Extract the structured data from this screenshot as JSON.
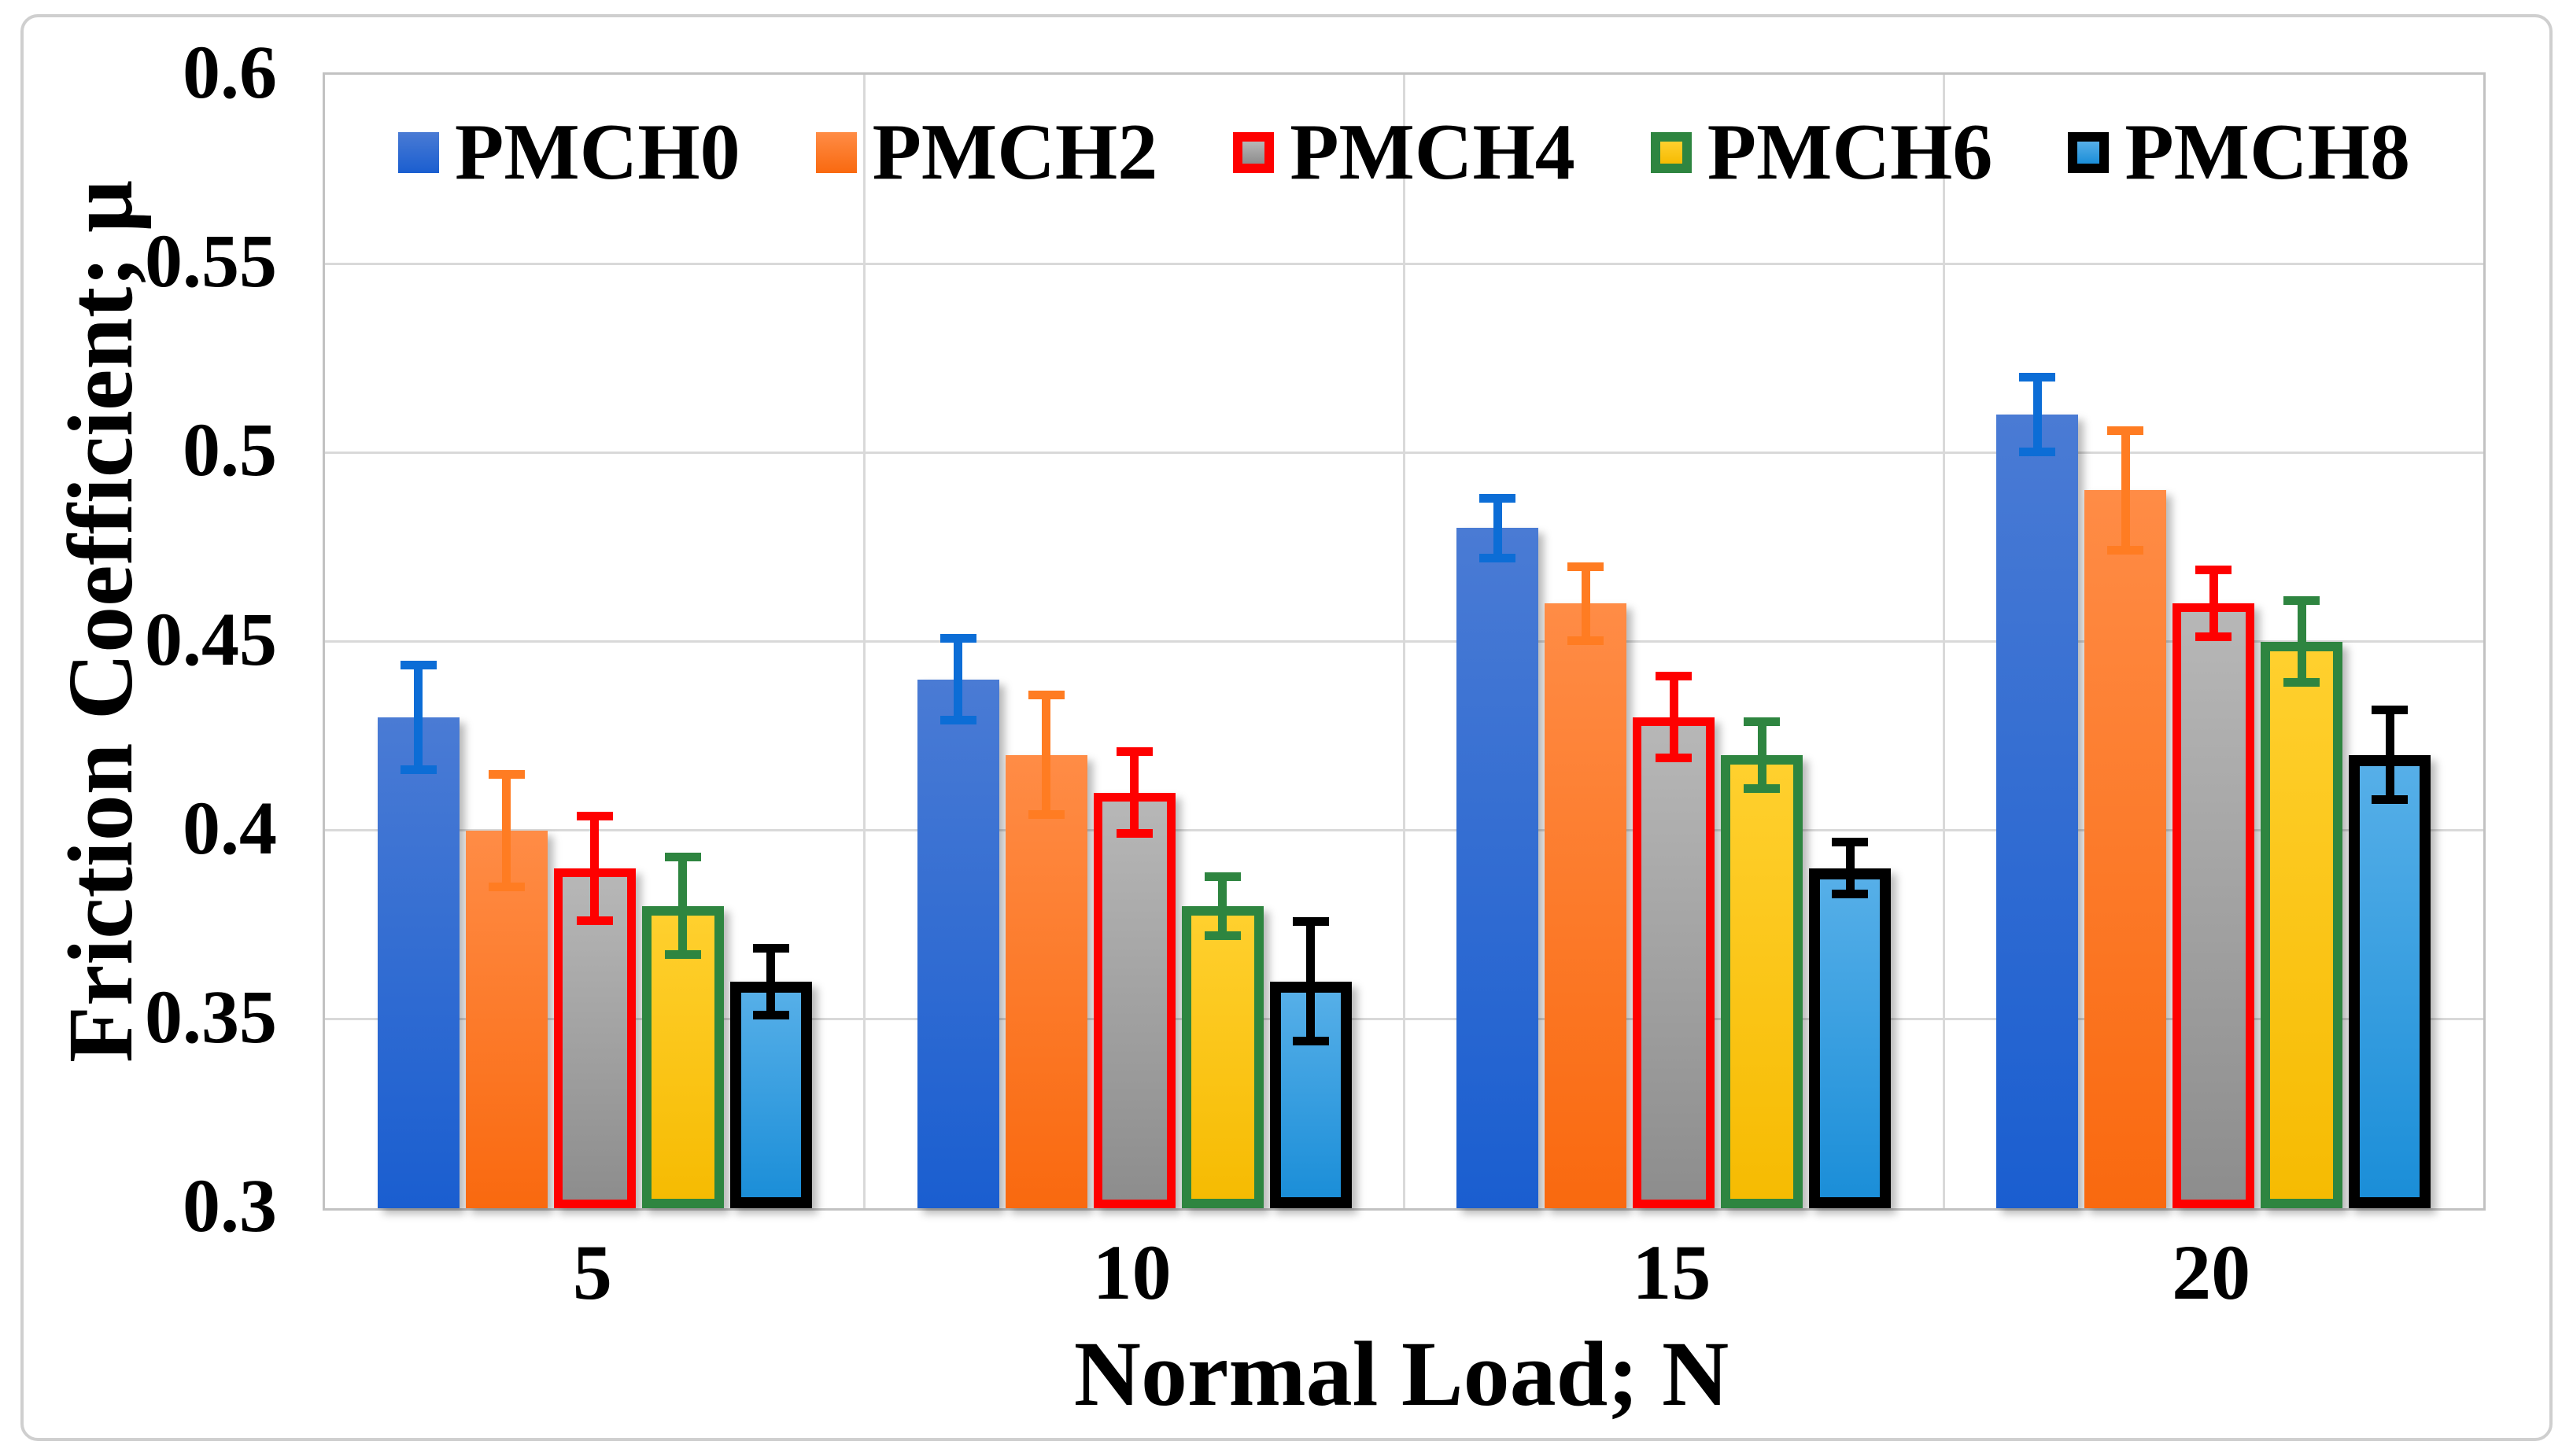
{
  "figure": {
    "background": "#ffffff",
    "frame_color": "#cfcfcf",
    "gridline_color": "#d9d9d9",
    "plot_border_color": "#c2c2c2"
  },
  "chart_data": {
    "type": "bar",
    "title": "",
    "xlabel": "Normal Load; N",
    "ylabel": "Friction Coefficient; μ",
    "categories": [
      "5",
      "10",
      "15",
      "20"
    ],
    "ylim": [
      0.3,
      0.6
    ],
    "y_ticks": [
      0.3,
      0.35,
      0.4,
      0.45,
      0.5,
      0.55,
      0.6
    ],
    "y_tick_labels": [
      "0.3",
      "0.35",
      "0.4",
      "0.45",
      "0.5",
      "0.55",
      "0.6"
    ],
    "grid": true,
    "legend_position": "top-center",
    "series": [
      {
        "name": "PMCH0",
        "values": [
          0.43,
          0.44,
          0.48,
          0.51
        ],
        "errors": [
          0.015,
          0.012,
          0.009,
          0.011
        ],
        "fill_top": "#4a7bd4",
        "fill_bottom": "#1a5ed0",
        "border_color": "none",
        "border_width": 0,
        "error_color": "#0c6dd6"
      },
      {
        "name": "PMCH2",
        "values": [
          0.4,
          0.42,
          0.46,
          0.49
        ],
        "errors": [
          0.016,
          0.017,
          0.011,
          0.017
        ],
        "fill_top": "#ff8c46",
        "fill_bottom": "#f9690f",
        "border_color": "none",
        "border_width": 0,
        "error_color": "#ff7c22"
      },
      {
        "name": "PMCH4",
        "values": [
          0.39,
          0.41,
          0.43,
          0.46
        ],
        "errors": [
          0.015,
          0.012,
          0.012,
          0.01
        ],
        "fill_top": "#b7b7b7",
        "fill_bottom": "#8d8d8d",
        "border_color": "#fe0000",
        "border_width": 11,
        "error_color": "#fe0000"
      },
      {
        "name": "PMCH6",
        "values": [
          0.38,
          0.38,
          0.42,
          0.45
        ],
        "errors": [
          0.014,
          0.009,
          0.01,
          0.012
        ],
        "fill_top": "#ffd02e",
        "fill_bottom": "#f6bb02",
        "border_color": "#2e8540",
        "border_width": 12,
        "error_color": "#2e8540"
      },
      {
        "name": "PMCH8",
        "values": [
          0.36,
          0.36,
          0.39,
          0.42
        ],
        "errors": [
          0.01,
          0.017,
          0.008,
          0.013
        ],
        "fill_top": "#56afe8",
        "fill_bottom": "#1b8ed8",
        "border_color": "#000000",
        "border_width": 14,
        "error_color": "#000000"
      }
    ]
  }
}
